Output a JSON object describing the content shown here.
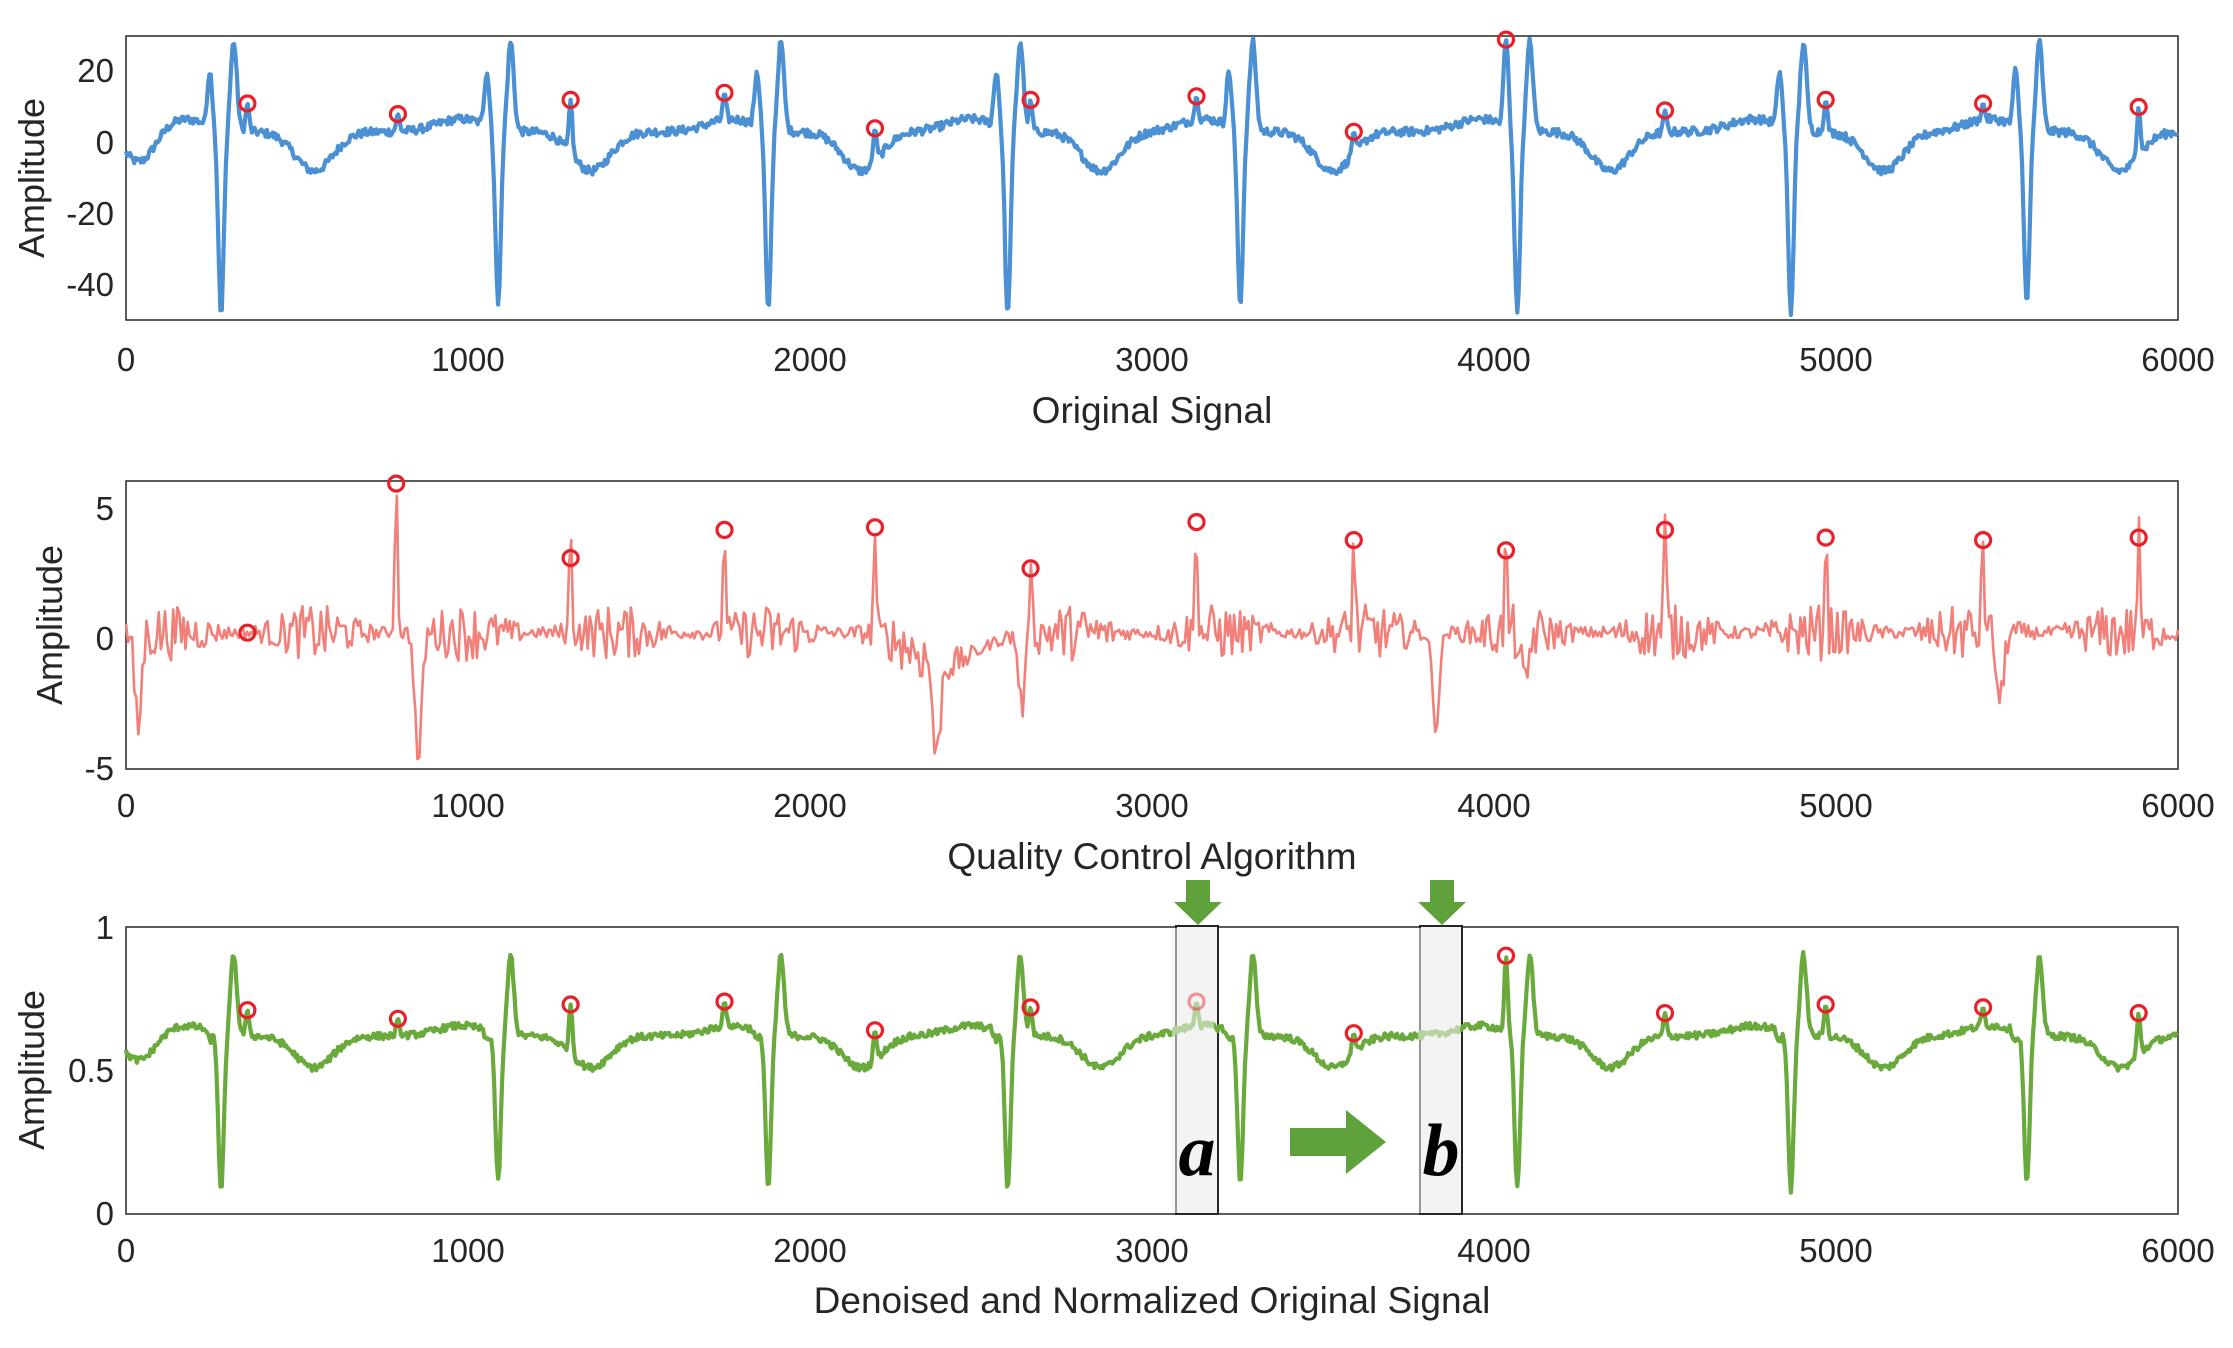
{
  "colors": {
    "blue": "#4a90d2",
    "red_signal": "#f08079",
    "green": "#6aaa3c",
    "marker": "#e8202a",
    "arrow": "#5fa13a",
    "axis": "#262626"
  },
  "chart_data": [
    {
      "type": "line",
      "title": "Original Signal",
      "xlabel": "",
      "ylabel": "Amplitude",
      "xlim": [
        0,
        6000
      ],
      "ylim": [
        -50,
        30
      ],
      "xticks": [
        "0",
        "1000",
        "2000",
        "3000",
        "4000",
        "5000",
        "6000"
      ],
      "yticks": [
        "-40",
        "-20",
        "0",
        "20"
      ],
      "ytick_values": [
        -40,
        -20,
        0,
        20
      ],
      "series": [
        {
          "color": "blue",
          "r_peaks": [
            {
              "x": 290,
              "min": -50,
              "max": 28
            },
            {
              "x": 1100,
              "min": -46,
              "max": 28
            },
            {
              "x": 1890,
              "min": -49,
              "max": 28
            },
            {
              "x": 2590,
              "min": -50,
              "max": 28
            },
            {
              "x": 3270,
              "min": -47,
              "max": 28
            },
            {
              "x": 4080,
              "min": -49,
              "max": 28
            },
            {
              "x": 4880,
              "min": -49,
              "max": 28
            },
            {
              "x": 5570,
              "min": -47,
              "max": 28
            }
          ],
          "markers": [
            {
              "x": 355,
              "y": 11
            },
            {
              "x": 795,
              "y": 8
            },
            {
              "x": 1300,
              "y": 12
            },
            {
              "x": 1750,
              "y": 14
            },
            {
              "x": 2190,
              "y": 4
            },
            {
              "x": 2645,
              "y": 12
            },
            {
              "x": 3130,
              "y": 13
            },
            {
              "x": 3590,
              "y": 3
            },
            {
              "x": 4035,
              "y": 29
            },
            {
              "x": 4500,
              "y": 9
            },
            {
              "x": 4970,
              "y": 12
            },
            {
              "x": 5430,
              "y": 11
            },
            {
              "x": 5885,
              "y": 10
            }
          ]
        }
      ]
    },
    {
      "type": "line",
      "title": "Quality Control Algorithm",
      "xlabel": "",
      "ylabel": "Amplitude",
      "xlim": [
        0,
        6000
      ],
      "ylim": [
        -5,
        6.2
      ],
      "xticks": [
        "0",
        "1000",
        "2000",
        "3000",
        "4000",
        "5000",
        "6000"
      ],
      "yticks": [
        "-5",
        "0",
        "5"
      ],
      "ytick_values": [
        -5,
        0,
        5
      ],
      "series": [
        {
          "color": "red_signal",
          "spikes": [
            {
              "x": 790,
              "y": 6.2
            },
            {
              "x": 1300,
              "y": 4.3
            },
            {
              "x": 1750,
              "y": 4.3
            },
            {
              "x": 2190,
              "y": 4.4
            },
            {
              "x": 2645,
              "y": 3.8
            },
            {
              "x": 3130,
              "y": 4.6
            },
            {
              "x": 3590,
              "y": 3.9
            },
            {
              "x": 4035,
              "y": 3.6
            },
            {
              "x": 4500,
              "y": 4.3
            },
            {
              "x": 4970,
              "y": 4.0
            },
            {
              "x": 5430,
              "y": 3.9
            },
            {
              "x": 5885,
              "y": 4.0
            }
          ],
          "dips": [
            {
              "x": 35,
              "y": -3.4
            },
            {
              "x": 855,
              "y": -4.7
            },
            {
              "x": 2370,
              "y": -3.6
            },
            {
              "x": 2620,
              "y": -2.5
            },
            {
              "x": 3830,
              "y": -3.4
            },
            {
              "x": 4090,
              "y": -2.1
            },
            {
              "x": 5480,
              "y": -2.5
            }
          ],
          "markers": [
            {
              "x": 355,
              "y": 0.3
            },
            {
              "x": 790,
              "y": 6.1
            },
            {
              "x": 1300,
              "y": 3.2
            },
            {
              "x": 1750,
              "y": 4.3
            },
            {
              "x": 2190,
              "y": 4.4
            },
            {
              "x": 2645,
              "y": 2.8
            },
            {
              "x": 3130,
              "y": 4.6
            },
            {
              "x": 3590,
              "y": 3.9
            },
            {
              "x": 4035,
              "y": 3.5
            },
            {
              "x": 4500,
              "y": 4.3
            },
            {
              "x": 4970,
              "y": 4.0
            },
            {
              "x": 5430,
              "y": 3.9
            },
            {
              "x": 5885,
              "y": 4.0
            }
          ]
        }
      ]
    },
    {
      "type": "line",
      "title": "Denoised and Normalized Original Signal",
      "xlabel": "",
      "ylabel": "Amplitude",
      "xlim": [
        0,
        6000
      ],
      "ylim": [
        0,
        1
      ],
      "xticks": [
        "0",
        "1000",
        "2000",
        "3000",
        "4000",
        "5000",
        "6000"
      ],
      "yticks": [
        "0",
        "0.5",
        "1"
      ],
      "ytick_values": [
        0,
        0.5,
        1
      ],
      "series": [
        {
          "color": "green",
          "r_peaks": [
            {
              "x": 290,
              "min": 0.06,
              "max": 0.9
            },
            {
              "x": 1100,
              "min": 0.1,
              "max": 0.9
            },
            {
              "x": 1890,
              "min": 0.08,
              "max": 0.9
            },
            {
              "x": 2590,
              "min": 0.07,
              "max": 0.9
            },
            {
              "x": 3270,
              "min": 0.09,
              "max": 0.9
            },
            {
              "x": 4080,
              "min": 0.08,
              "max": 0.9
            },
            {
              "x": 4880,
              "min": 0.07,
              "max": 0.9
            },
            {
              "x": 5570,
              "min": 0.09,
              "max": 0.9
            }
          ],
          "markers": [
            {
              "x": 355,
              "y": 0.71
            },
            {
              "x": 795,
              "y": 0.68
            },
            {
              "x": 1300,
              "y": 0.73
            },
            {
              "x": 1750,
              "y": 0.74
            },
            {
              "x": 2190,
              "y": 0.64
            },
            {
              "x": 2645,
              "y": 0.72
            },
            {
              "x": 3130,
              "y": 0.74,
              "faded": true
            },
            {
              "x": 3590,
              "y": 0.63
            },
            {
              "x": 4035,
              "y": 0.9
            },
            {
              "x": 4500,
              "y": 0.7
            },
            {
              "x": 4970,
              "y": 0.73
            },
            {
              "x": 5430,
              "y": 0.72
            },
            {
              "x": 5885,
              "y": 0.7
            }
          ]
        }
      ],
      "annotations": [
        {
          "label": "a",
          "x_range": [
            3070,
            3195
          ]
        },
        {
          "label": "b",
          "x_range": [
            3790,
            3915
          ]
        }
      ]
    }
  ]
}
